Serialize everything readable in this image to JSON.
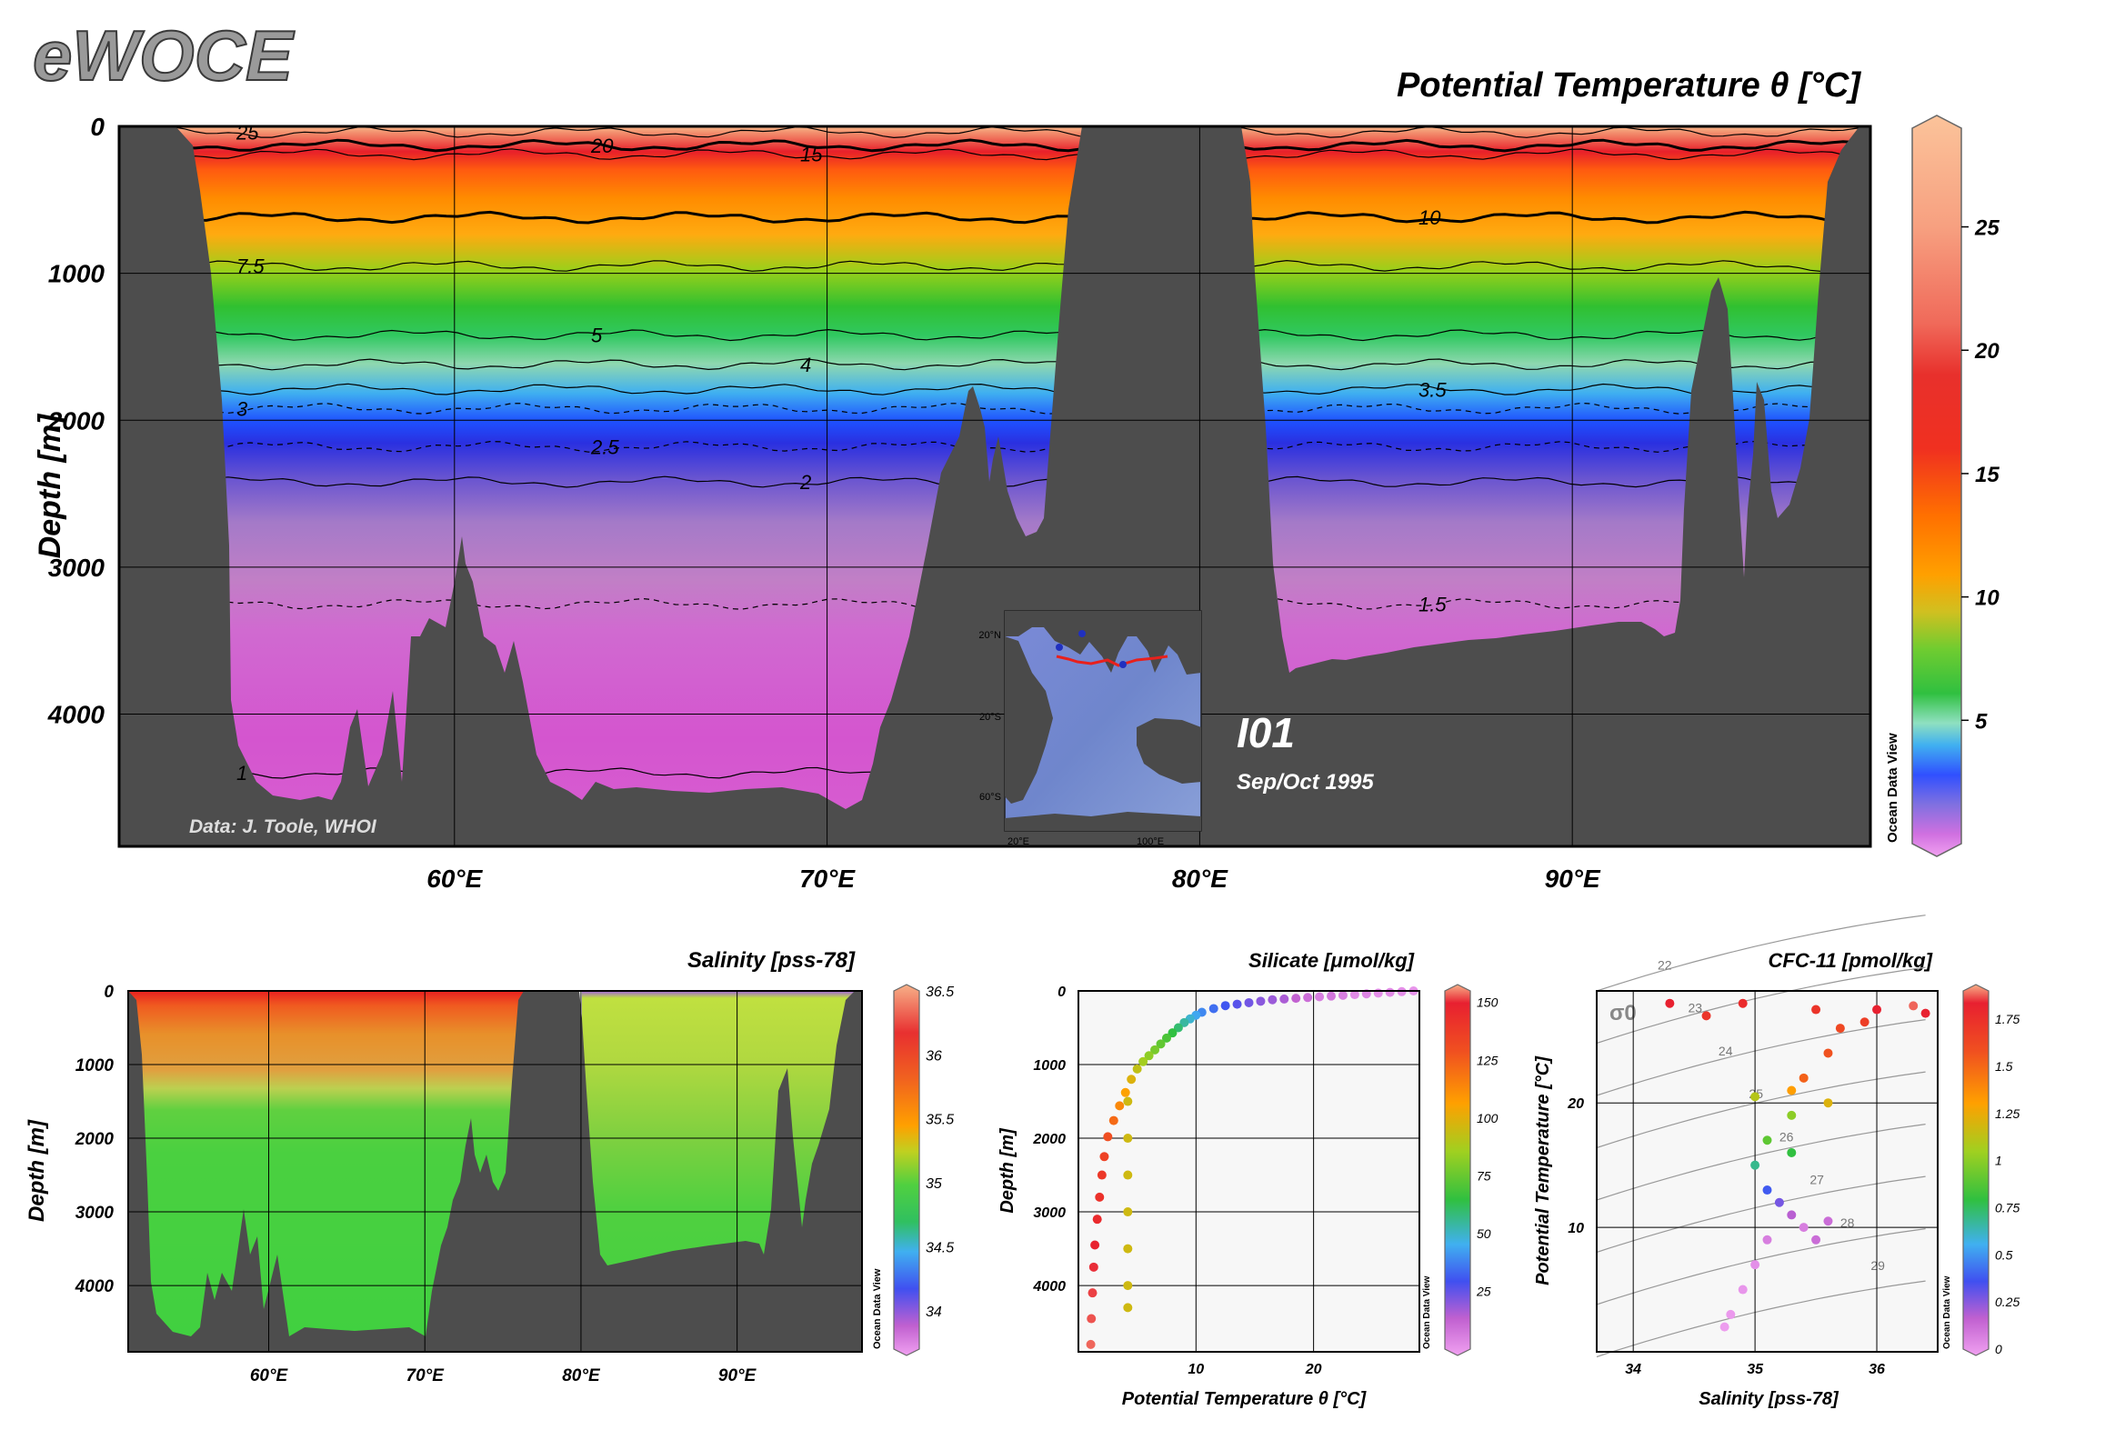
{
  "logo": "eWOCE",
  "credit": "Data: J. Toole, WHOI",
  "section_name": "I01",
  "section_date": "Sep/Oct 1995",
  "odv_label": "Ocean Data View",
  "chart_data": [
    {
      "type": "heatmap",
      "title": "Potential Temperature θ [°C]",
      "ylabel": "Depth [m]",
      "xlabel": "",
      "x_ticks": [
        "60°E",
        "70°E",
        "80°E",
        "90°E"
      ],
      "x_tick_values": [
        60,
        70,
        80,
        90
      ],
      "y_ticks": [
        "0",
        "1000",
        "2000",
        "3000",
        "4000"
      ],
      "y_tick_values": [
        0,
        1000,
        2000,
        3000,
        4000
      ],
      "xlim": [
        51,
        98
      ],
      "ylim": [
        0,
        4900
      ],
      "colorbar": {
        "ticks": [
          "5",
          "10",
          "15",
          "20",
          "25"
        ],
        "values": [
          5,
          10,
          15,
          20,
          25
        ],
        "range": [
          0,
          29
        ]
      },
      "contours": [
        {
          "label": "25",
          "depth": 40
        },
        {
          "label": "20",
          "depth": 130
        },
        {
          "label": "15",
          "depth": 190
        },
        {
          "label": "10",
          "depth": 620
        },
        {
          "label": "7.5",
          "depth": 950
        },
        {
          "label": "5",
          "depth": 1420
        },
        {
          "label": "4",
          "depth": 1620
        },
        {
          "label": "3.5",
          "depth": 1790
        },
        {
          "label": "3",
          "depth": 1920
        },
        {
          "label": "2.5",
          "depth": 2180
        },
        {
          "label": "2",
          "depth": 2420
        },
        {
          "label": "1.5",
          "depth": 3250
        },
        {
          "label": "1",
          "depth": 4400
        }
      ]
    },
    {
      "type": "heatmap",
      "title": "Salinity [pss-78]",
      "ylabel": "Depth [m]",
      "x_ticks": [
        "60°E",
        "70°E",
        "80°E",
        "90°E"
      ],
      "x_tick_values": [
        60,
        70,
        80,
        90
      ],
      "y_ticks": [
        "0",
        "1000",
        "2000",
        "3000",
        "4000"
      ],
      "y_tick_values": [
        0,
        1000,
        2000,
        3000,
        4000
      ],
      "xlim": [
        51,
        98
      ],
      "ylim": [
        0,
        4900
      ],
      "colorbar": {
        "ticks": [
          "34",
          "34.5",
          "35",
          "35.5",
          "36",
          "36.5"
        ],
        "values": [
          34,
          34.5,
          35,
          35.5,
          36,
          36.5
        ],
        "range": [
          33.7,
          36.5
        ]
      }
    },
    {
      "type": "scatter",
      "title": "Silicate [μmol/kg]",
      "xlabel": "Potential Temperature θ [°C]",
      "ylabel": "Depth [m]",
      "x_ticks": [
        "10",
        "20"
      ],
      "x_tick_values": [
        10,
        20
      ],
      "y_ticks": [
        "0",
        "1000",
        "2000",
        "3000",
        "4000"
      ],
      "y_tick_values": [
        0,
        1000,
        2000,
        3000,
        4000
      ],
      "xlim": [
        0,
        29
      ],
      "ylim": [
        0,
        4900
      ],
      "colorbar": {
        "ticks": [
          "25",
          "50",
          "75",
          "100",
          "125",
          "150"
        ],
        "values": [
          25,
          50,
          75,
          100,
          125,
          150
        ],
        "range": [
          0,
          155
        ]
      },
      "series": [
        {
          "points": [
            [
              28.5,
              0,
              3
            ],
            [
              27.5,
              10,
              4
            ],
            [
              26.5,
              20,
              5
            ],
            [
              25.5,
              30,
              4
            ],
            [
              24.5,
              40,
              6
            ],
            [
              23.5,
              50,
              5
            ],
            [
              22.5,
              60,
              8
            ],
            [
              21.5,
              70,
              10
            ],
            [
              20.5,
              80,
              8
            ],
            [
              19.5,
              90,
              12
            ],
            [
              18.5,
              100,
              15
            ],
            [
              17.5,
              110,
              18
            ],
            [
              16.5,
              120,
              20
            ],
            [
              15.5,
              140,
              22
            ],
            [
              14.5,
              160,
              25
            ],
            [
              13.5,
              180,
              28
            ],
            [
              12.5,
              200,
              32
            ],
            [
              11.5,
              240,
              36
            ],
            [
              10.5,
              290,
              40
            ],
            [
              10,
              330,
              45
            ],
            [
              9.5,
              380,
              50
            ],
            [
              9,
              430,
              55
            ],
            [
              8.5,
              500,
              60
            ],
            [
              8,
              570,
              65
            ],
            [
              7.5,
              640,
              70
            ],
            [
              7,
              720,
              74
            ],
            [
              6.5,
              800,
              78
            ],
            [
              6,
              880,
              82
            ],
            [
              5.5,
              960,
              86
            ],
            [
              5,
              1060,
              92
            ],
            [
              4.5,
              1200,
              98
            ],
            [
              4,
              1380,
              105
            ],
            [
              3.5,
              1560,
              112
            ],
            [
              3,
              1760,
              120
            ],
            [
              2.5,
              1980,
              128
            ],
            [
              2.2,
              2250,
              133
            ],
            [
              2,
              2500,
              137
            ],
            [
              1.8,
              2800,
              140
            ],
            [
              1.6,
              3100,
              143
            ],
            [
              1.4,
              3450,
              146
            ],
            [
              1.3,
              3750,
              148
            ],
            [
              1.2,
              4100,
              149
            ],
            [
              1.1,
              4450,
              150
            ],
            [
              1.05,
              4800,
              151
            ],
            [
              4.2,
              1500,
              95
            ],
            [
              4.2,
              2000,
              95
            ],
            [
              4.2,
              2500,
              95
            ],
            [
              4.2,
              3000,
              95
            ],
            [
              4.2,
              3500,
              95
            ],
            [
              4.2,
              4000,
              95
            ],
            [
              4.2,
              4300,
              95
            ]
          ]
        }
      ]
    },
    {
      "type": "scatter",
      "title": "CFC-11 [pmol/kg]",
      "xlabel": "Salinity [pss-78]",
      "ylabel": "Potential Temperature [°C]",
      "x_ticks": [
        "34",
        "35",
        "36"
      ],
      "x_tick_values": [
        34,
        35,
        36
      ],
      "y_ticks": [
        "10",
        "20"
      ],
      "y_tick_values": [
        10,
        20
      ],
      "xlim": [
        33.7,
        36.5
      ],
      "ylim": [
        0,
        29
      ],
      "colorbar": {
        "ticks": [
          "0",
          "0.25",
          "0.5",
          "0.75",
          "1",
          "1.25",
          "1.5",
          "1.75"
        ],
        "values": [
          0,
          0.25,
          0.5,
          0.75,
          1,
          1.25,
          1.5,
          1.75
        ],
        "range": [
          0,
          1.9
        ]
      },
      "isopycnal_labels": [
        "σ0",
        "22",
        "23",
        "24",
        "25",
        "26",
        "27",
        "28",
        "29"
      ],
      "series": [
        {
          "points": [
            [
              34.3,
              28,
              1.8
            ],
            [
              34.9,
              28,
              1.75
            ],
            [
              35.5,
              27.5,
              1.7
            ],
            [
              36.0,
              27.5,
              1.8
            ],
            [
              36.3,
              27.8,
              1.85
            ],
            [
              35.7,
              26,
              1.6
            ],
            [
              35.6,
              24,
              1.55
            ],
            [
              35.4,
              22,
              1.5
            ],
            [
              35.3,
              21,
              1.3
            ],
            [
              35.0,
              20.5,
              1.1
            ],
            [
              35.3,
              19,
              1.0
            ],
            [
              35.6,
              20,
              1.2
            ],
            [
              35.1,
              17,
              0.9
            ],
            [
              35.0,
              15,
              0.7
            ],
            [
              35.3,
              16,
              0.8
            ],
            [
              35.1,
              13,
              0.4
            ],
            [
              35.2,
              12,
              0.3
            ],
            [
              35.3,
              11,
              0.2
            ],
            [
              35.1,
              9,
              0.1
            ],
            [
              35.0,
              7,
              0.05
            ],
            [
              34.9,
              5,
              0.03
            ],
            [
              34.8,
              3,
              0.02
            ],
            [
              34.75,
              2,
              0.01
            ],
            [
              35.4,
              10,
              0.1
            ],
            [
              35.5,
              9,
              0.15
            ],
            [
              35.6,
              10.5,
              0.15
            ],
            [
              34.6,
              27,
              1.7
            ],
            [
              35.9,
              26.5,
              1.65
            ],
            [
              36.4,
              27.2,
              1.8
            ]
          ]
        }
      ]
    }
  ],
  "inset_map": {
    "lat_ticks": [
      "20°N",
      "20°S",
      "60°S"
    ],
    "lon_ticks": [
      "20°E",
      "100°E"
    ]
  },
  "colors": {
    "land": "#4d4d4d",
    "frame": "#000000",
    "map_ocean": "#7f8fd0",
    "map_land": "#4a4a4a",
    "section_line": "#e8201c",
    "station": "#2030c0"
  }
}
